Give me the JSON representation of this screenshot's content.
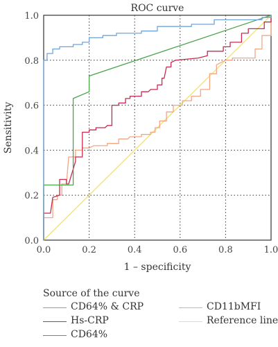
{
  "chart_data": {
    "type": "line",
    "title": "ROC curve",
    "xlabel": "1 – specificity",
    "ylabel": "Sensitivity",
    "xlim": [
      0,
      1
    ],
    "ylim": [
      0,
      1
    ],
    "xticks": [
      "0.0",
      "0.2",
      "0.4",
      "0.6",
      "0.8",
      "1.0"
    ],
    "yticks": [
      "0.0",
      "0.2",
      "0.4",
      "0.6",
      "0.8",
      "1.0"
    ],
    "grid": "dotted",
    "legend_title": "Source of the curve",
    "legend_position": "bottom",
    "series": [
      {
        "name": "CD64% & CRP",
        "color": "#6fa3d9",
        "points": [
          [
            0,
            0
          ],
          [
            0,
            0.8
          ],
          [
            0.015,
            0.8
          ],
          [
            0.015,
            0.83
          ],
          [
            0.04,
            0.83
          ],
          [
            0.04,
            0.85
          ],
          [
            0.07,
            0.85
          ],
          [
            0.07,
            0.86
          ],
          [
            0.13,
            0.86
          ],
          [
            0.13,
            0.87
          ],
          [
            0.17,
            0.87
          ],
          [
            0.17,
            0.88
          ],
          [
            0.2,
            0.88
          ],
          [
            0.2,
            0.9
          ],
          [
            0.26,
            0.9
          ],
          [
            0.26,
            0.91
          ],
          [
            0.32,
            0.91
          ],
          [
            0.32,
            0.92
          ],
          [
            0.43,
            0.92
          ],
          [
            0.43,
            0.93
          ],
          [
            0.5,
            0.93
          ],
          [
            0.5,
            0.95
          ],
          [
            0.65,
            0.95
          ],
          [
            0.65,
            0.96
          ],
          [
            0.75,
            0.96
          ],
          [
            0.75,
            0.98
          ],
          [
            0.96,
            0.98
          ],
          [
            0.96,
            0.99
          ],
          [
            1,
            0.99
          ],
          [
            1,
            1
          ]
        ]
      },
      {
        "name": "Hs-CRP",
        "color": "#c8284f",
        "points": [
          [
            0,
            0
          ],
          [
            0,
            0.12
          ],
          [
            0.03,
            0.12
          ],
          [
            0.04,
            0.19
          ],
          [
            0.07,
            0.2
          ],
          [
            0.07,
            0.27
          ],
          [
            0.1,
            0.27
          ],
          [
            0.1,
            0.25
          ],
          [
            0.11,
            0.25
          ],
          [
            0.14,
            0.35
          ],
          [
            0.14,
            0.37
          ],
          [
            0.17,
            0.37
          ],
          [
            0.17,
            0.48
          ],
          [
            0.2,
            0.48
          ],
          [
            0.2,
            0.49
          ],
          [
            0.23,
            0.49
          ],
          [
            0.23,
            0.5
          ],
          [
            0.27,
            0.5
          ],
          [
            0.28,
            0.51
          ],
          [
            0.3,
            0.51
          ],
          [
            0.3,
            0.6
          ],
          [
            0.33,
            0.6
          ],
          [
            0.33,
            0.61
          ],
          [
            0.36,
            0.61
          ],
          [
            0.36,
            0.63
          ],
          [
            0.38,
            0.63
          ],
          [
            0.38,
            0.64
          ],
          [
            0.43,
            0.64
          ],
          [
            0.43,
            0.66
          ],
          [
            0.46,
            0.66
          ],
          [
            0.47,
            0.67
          ],
          [
            0.5,
            0.67
          ],
          [
            0.5,
            0.69
          ],
          [
            0.52,
            0.69
          ],
          [
            0.52,
            0.72
          ],
          [
            0.53,
            0.72
          ],
          [
            0.54,
            0.77
          ],
          [
            0.56,
            0.77
          ],
          [
            0.56,
            0.79
          ],
          [
            0.58,
            0.8
          ],
          [
            0.68,
            0.81
          ],
          [
            0.72,
            0.82
          ],
          [
            0.72,
            0.84
          ],
          [
            0.79,
            0.84
          ],
          [
            0.79,
            0.86
          ],
          [
            0.82,
            0.86
          ],
          [
            0.82,
            0.88
          ],
          [
            0.87,
            0.88
          ],
          [
            0.87,
            0.92
          ],
          [
            0.9,
            0.92
          ],
          [
            0.9,
            0.94
          ],
          [
            0.97,
            0.94
          ],
          [
            0.97,
            0.97
          ],
          [
            1,
            0.97
          ],
          [
            1,
            1
          ]
        ]
      },
      {
        "name": "CD64%",
        "color": "#4aa24a",
        "points": [
          [
            0,
            0
          ],
          [
            0,
            0.245
          ],
          [
            0.13,
            0.245
          ],
          [
            0.13,
            0.63
          ],
          [
            0.2,
            0.66
          ],
          [
            0.2,
            0.73
          ],
          [
            1,
            1
          ]
        ]
      },
      {
        "name": "CD11bMFI",
        "color": "#f4a582",
        "points": [
          [
            0,
            0
          ],
          [
            0,
            0.1
          ],
          [
            0.04,
            0.1
          ],
          [
            0.04,
            0.18
          ],
          [
            0.06,
            0.18
          ],
          [
            0.06,
            0.2
          ],
          [
            0.08,
            0.2
          ],
          [
            0.08,
            0.25
          ],
          [
            0.1,
            0.25
          ],
          [
            0.11,
            0.37
          ],
          [
            0.14,
            0.37
          ],
          [
            0.14,
            0.4
          ],
          [
            0.17,
            0.4
          ],
          [
            0.17,
            0.41
          ],
          [
            0.2,
            0.41
          ],
          [
            0.22,
            0.42
          ],
          [
            0.28,
            0.42
          ],
          [
            0.28,
            0.43
          ],
          [
            0.33,
            0.43
          ],
          [
            0.33,
            0.45
          ],
          [
            0.37,
            0.45
          ],
          [
            0.38,
            0.46
          ],
          [
            0.43,
            0.46
          ],
          [
            0.43,
            0.47
          ],
          [
            0.47,
            0.47
          ],
          [
            0.47,
            0.48
          ],
          [
            0.49,
            0.48
          ],
          [
            0.49,
            0.5
          ],
          [
            0.51,
            0.5
          ],
          [
            0.51,
            0.53
          ],
          [
            0.54,
            0.53
          ],
          [
            0.54,
            0.57
          ],
          [
            0.57,
            0.57
          ],
          [
            0.57,
            0.6
          ],
          [
            0.61,
            0.6
          ],
          [
            0.61,
            0.62
          ],
          [
            0.65,
            0.62
          ],
          [
            0.65,
            0.64
          ],
          [
            0.69,
            0.64
          ],
          [
            0.69,
            0.67
          ],
          [
            0.73,
            0.67
          ],
          [
            0.73,
            0.74
          ],
          [
            0.76,
            0.74
          ],
          [
            0.76,
            0.78
          ],
          [
            0.8,
            0.8
          ],
          [
            0.83,
            0.8
          ],
          [
            0.83,
            0.81
          ],
          [
            0.93,
            0.81
          ],
          [
            0.93,
            0.85
          ],
          [
            0.96,
            0.85
          ],
          [
            0.96,
            0.91
          ],
          [
            1,
            0.91
          ],
          [
            1,
            1
          ]
        ]
      },
      {
        "name": "Reference line",
        "color": "#f0e26e",
        "points": [
          [
            0,
            0
          ],
          [
            1,
            1
          ]
        ]
      }
    ]
  }
}
